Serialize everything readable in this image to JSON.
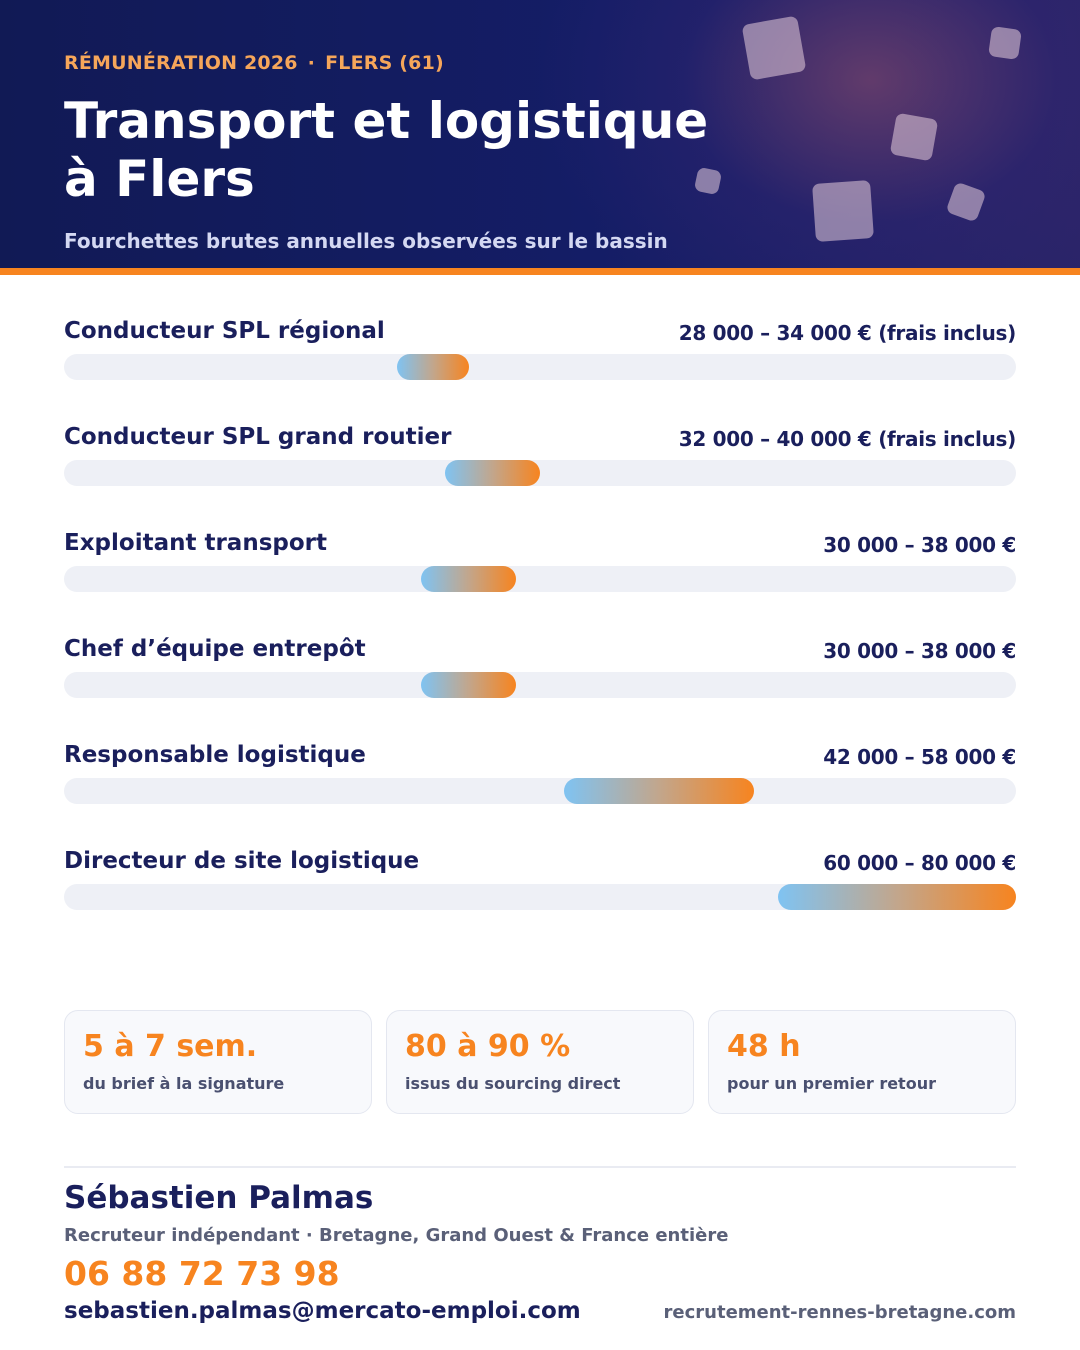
{
  "header": {
    "eyebrow_left": "RÉMUNÉRATION 2026",
    "eyebrow_sep": "·",
    "eyebrow_right": "FLERS (61)",
    "title_line1": "Transport et logistique",
    "title_line2": "à Flers",
    "subtitle": "Fourchettes brutes annuelles observées sur le bassin"
  },
  "colors": {
    "navy": "#141d66",
    "accent": "#f7841f",
    "bar_start": "#7fc3f2",
    "bar_end": "#f7841f",
    "track": "#eef0f6"
  },
  "chart_data": {
    "type": "bar",
    "orientation": "horizontal-range",
    "xlim": [
      0,
      80000
    ],
    "grid": false,
    "categories": [
      "Conducteur SPL régional",
      "Conducteur SPL grand routier",
      "Exploitant transport",
      "Chef d’équipe entrepôt",
      "Responsable logistique",
      "Directeur de site logistique"
    ],
    "ranges": [
      {
        "min": 28000,
        "max": 34000,
        "label": "28 000 – 34 000 € (frais inclus)"
      },
      {
        "min": 32000,
        "max": 40000,
        "label": "32 000 – 40 000 € (frais inclus)"
      },
      {
        "min": 30000,
        "max": 38000,
        "label": "30 000 – 38 000 €"
      },
      {
        "min": 30000,
        "max": 38000,
        "label": "30 000 – 38 000 €"
      },
      {
        "min": 42000,
        "max": 58000,
        "label": "42 000 – 58 000 €"
      },
      {
        "min": 60000,
        "max": 80000,
        "label": "60 000 – 80 000 €"
      }
    ]
  },
  "stats": [
    {
      "value": "5 à 7 sem.",
      "label": "du brief à la signature"
    },
    {
      "value": "80 à 90 %",
      "label": "issus du sourcing direct"
    },
    {
      "value": "48 h",
      "label": "pour un premier retour"
    }
  ],
  "contact": {
    "name": "Sébastien Palmas",
    "role": "Recruteur indépendant · Bretagne, Grand Ouest & France entière",
    "phone": "06 88 72 73 98",
    "email": "sebastien.palmas@mercato-emploi.com",
    "website": "recrutement-rennes-bretagne.com"
  }
}
